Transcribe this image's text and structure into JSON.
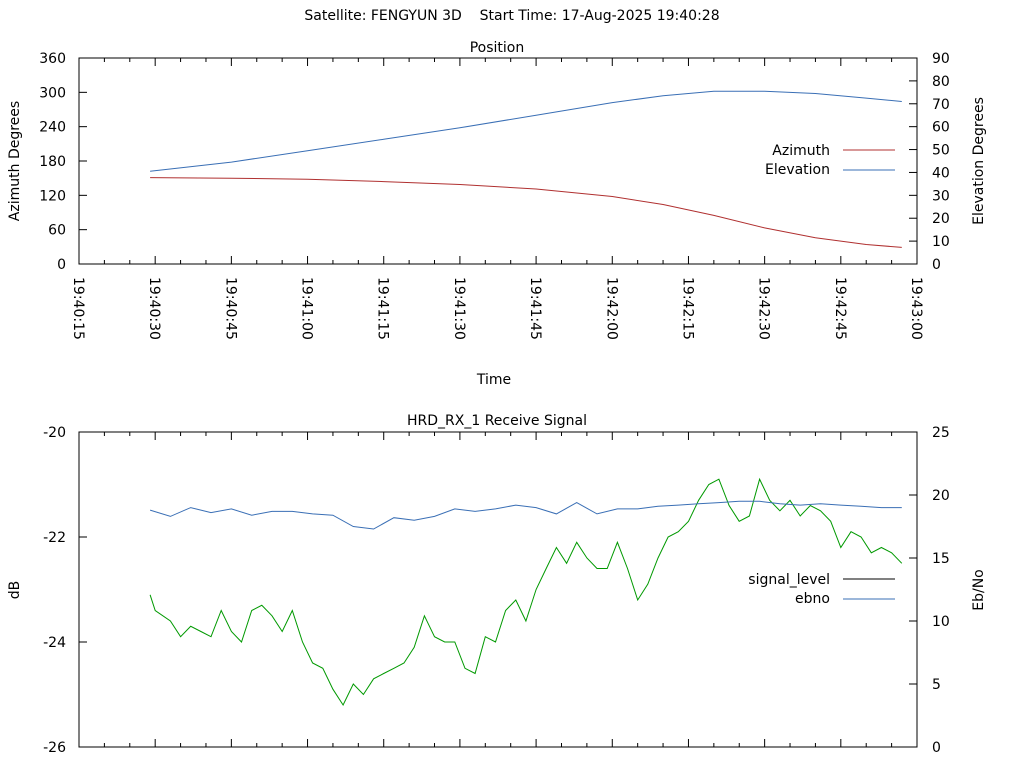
{
  "header": {
    "satellite": "Satellite: FENGYUN 3D",
    "start_time": "Start Time: 17-Aug-2025 19:40:28"
  },
  "colors": {
    "azimuth": "#b03030",
    "elevation": "#3a6fb5",
    "signal_level": "#009900",
    "ebno": "#3a6fb5",
    "legend_signal_level": "#000000"
  },
  "chart_data": [
    {
      "type": "line",
      "title": "Position",
      "xlabel": "Time",
      "ylabel": "Azimuth Degrees",
      "y2label": "Elevation Degrees",
      "x_ticks": [
        "19:40:15",
        "19:40:30",
        "19:40:45",
        "19:41:00",
        "19:41:15",
        "19:41:30",
        "19:41:45",
        "19:42:00",
        "19:42:15",
        "19:42:30",
        "19:42:45",
        "19:43:00"
      ],
      "xlim": [
        "19:40:15",
        "19:43:00"
      ],
      "ylim": [
        0,
        360
      ],
      "y_ticks": [
        0,
        60,
        120,
        180,
        240,
        300,
        360
      ],
      "y2lim": [
        0,
        90
      ],
      "y2_ticks": [
        0,
        10,
        20,
        30,
        40,
        50,
        60,
        70,
        80,
        90
      ],
      "legend": "right",
      "series": [
        {
          "name": "Azimuth",
          "axis": "y",
          "x": [
            "19:40:29",
            "19:40:45",
            "19:41:00",
            "19:41:15",
            "19:41:30",
            "19:41:45",
            "19:42:00",
            "19:42:10",
            "19:42:20",
            "19:42:30",
            "19:42:40",
            "19:42:50",
            "19:42:57"
          ],
          "values": [
            151,
            150,
            148,
            144,
            139,
            131,
            118,
            104,
            85,
            63,
            46,
            34,
            29
          ]
        },
        {
          "name": "Elevation",
          "axis": "y2",
          "x": [
            "19:40:29",
            "19:40:45",
            "19:41:00",
            "19:41:15",
            "19:41:30",
            "19:41:45",
            "19:42:00",
            "19:42:10",
            "19:42:20",
            "19:42:30",
            "19:42:40",
            "19:42:50",
            "19:42:57"
          ],
          "values": [
            40.5,
            44.5,
            49.5,
            54.5,
            59.5,
            65,
            70.5,
            73.5,
            75.5,
            75.5,
            74.5,
            72.5,
            71
          ]
        }
      ]
    },
    {
      "type": "line",
      "title": "HRD_RX_1 Receive Signal",
      "xlabel": "",
      "ylabel": "dB",
      "y2label": "Eb/No",
      "xlim": [
        "19:40:15",
        "19:43:00"
      ],
      "ylim": [
        -26,
        -20
      ],
      "y_ticks": [
        -26,
        -24,
        -22,
        -20
      ],
      "y2lim": [
        0,
        25
      ],
      "y2_ticks": [
        0,
        5,
        10,
        15,
        20,
        25
      ],
      "legend": "right",
      "series": [
        {
          "name": "signal_level",
          "axis": "y",
          "x": [
            "19:40:29",
            "19:40:30",
            "19:40:33",
            "19:40:35",
            "19:40:37",
            "19:40:39",
            "19:40:41",
            "19:40:43",
            "19:40:45",
            "19:40:47",
            "19:40:49",
            "19:40:51",
            "19:40:53",
            "19:40:55",
            "19:40:57",
            "19:40:59",
            "19:41:01",
            "19:41:03",
            "19:41:05",
            "19:41:07",
            "19:41:09",
            "19:41:11",
            "19:41:13",
            "19:41:15",
            "19:41:17",
            "19:41:19",
            "19:41:21",
            "19:41:23",
            "19:41:25",
            "19:41:27",
            "19:41:29",
            "19:41:31",
            "19:41:33",
            "19:41:35",
            "19:41:37",
            "19:41:39",
            "19:41:41",
            "19:41:43",
            "19:41:45",
            "19:41:47",
            "19:41:49",
            "19:41:51",
            "19:41:53",
            "19:41:55",
            "19:41:57",
            "19:41:59",
            "19:42:01",
            "19:42:03",
            "19:42:05",
            "19:42:07",
            "19:42:09",
            "19:42:11",
            "19:42:13",
            "19:42:15",
            "19:42:17",
            "19:42:19",
            "19:42:21",
            "19:42:23",
            "19:42:25",
            "19:42:27",
            "19:42:29",
            "19:42:31",
            "19:42:33",
            "19:42:35",
            "19:42:37",
            "19:42:39",
            "19:42:41",
            "19:42:43",
            "19:42:45",
            "19:42:47",
            "19:42:49",
            "19:42:51",
            "19:42:53",
            "19:42:55",
            "19:42:57"
          ],
          "values": [
            -23.1,
            -23.4,
            -23.6,
            -23.9,
            -23.7,
            -23.8,
            -23.9,
            -23.4,
            -23.8,
            -24.0,
            -23.4,
            -23.3,
            -23.5,
            -23.8,
            -23.4,
            -24.0,
            -24.4,
            -24.5,
            -24.9,
            -25.2,
            -24.8,
            -25.0,
            -24.7,
            -24.6,
            -24.5,
            -24.4,
            -24.1,
            -23.5,
            -23.9,
            -24.0,
            -24.0,
            -24.5,
            -24.6,
            -23.9,
            -24.0,
            -23.4,
            -23.2,
            -23.6,
            -23.0,
            -22.6,
            -22.2,
            -22.5,
            -22.1,
            -22.4,
            -22.6,
            -22.6,
            -22.1,
            -22.6,
            -23.2,
            -22.9,
            -22.4,
            -22.0,
            -21.9,
            -21.7,
            -21.3,
            -21.0,
            -20.9,
            -21.4,
            -21.7,
            -21.6,
            -20.9,
            -21.3,
            -21.5,
            -21.3,
            -21.6,
            -21.4,
            -21.5,
            -21.7,
            -22.2,
            -21.9,
            -22.0,
            -22.3,
            -22.2,
            -22.3,
            -22.5
          ]
        },
        {
          "name": "ebno",
          "axis": "y2",
          "x": [
            "19:40:29",
            "19:40:33",
            "19:40:37",
            "19:40:41",
            "19:40:45",
            "19:40:49",
            "19:40:53",
            "19:40:57",
            "19:41:01",
            "19:41:05",
            "19:41:09",
            "19:41:13",
            "19:41:17",
            "19:41:21",
            "19:41:25",
            "19:41:29",
            "19:41:33",
            "19:41:37",
            "19:41:41",
            "19:41:45",
            "19:41:49",
            "19:41:53",
            "19:41:57",
            "19:42:01",
            "19:42:05",
            "19:42:09",
            "19:42:13",
            "19:42:17",
            "19:42:21",
            "19:42:25",
            "19:42:29",
            "19:42:33",
            "19:42:37",
            "19:42:41",
            "19:42:45",
            "19:42:49",
            "19:42:53",
            "19:42:57"
          ],
          "values": [
            18.8,
            18.3,
            19.0,
            18.6,
            18.9,
            18.4,
            18.7,
            18.7,
            18.5,
            18.4,
            17.5,
            17.3,
            18.2,
            18.0,
            18.3,
            18.9,
            18.7,
            18.9,
            19.2,
            19.0,
            18.5,
            19.4,
            18.5,
            18.9,
            18.9,
            19.1,
            19.2,
            19.3,
            19.4,
            19.5,
            19.5,
            19.3,
            19.2,
            19.3,
            19.2,
            19.1,
            19.0,
            19.0
          ]
        }
      ]
    }
  ]
}
